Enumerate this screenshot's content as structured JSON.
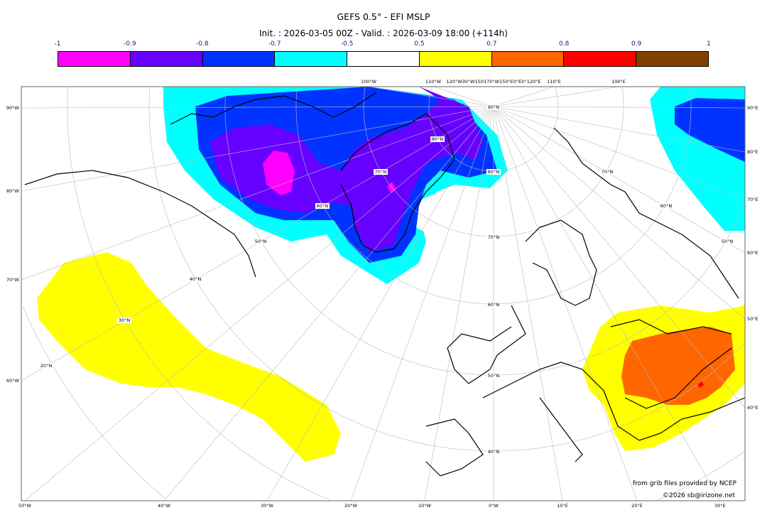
{
  "title": "GEFS 0.5° - EFI MSLP",
  "subtitle": "Init. : 2026-03-05 00Z - Valid. : 2026-03-09 18:00 (+114h)",
  "colorbar": {
    "ticks": [
      "-1",
      "-0.9",
      "-0.8",
      "-0.7",
      "-0.5",
      "0.5",
      "0.7",
      "0.8",
      "0.9",
      "1"
    ],
    "colors": [
      "#ff00ff",
      "#6600ff",
      "#0033ff",
      "#00ffff",
      "#ffffff",
      "#ffff00",
      "#ff6600",
      "#ff0000",
      "#804000"
    ]
  },
  "axis_labels": {
    "left": [
      "90°W",
      "80°W",
      "70°W",
      "60°W"
    ],
    "bottom": [
      "50°W",
      "40°W",
      "30°W",
      "20°W",
      "10°W",
      "0°W",
      "10°E",
      "20°E",
      "30°E"
    ],
    "right": [
      "90°E",
      "80°E",
      "70°E",
      "60°E",
      "50°E",
      "40°E"
    ],
    "top": [
      "100°W",
      "110°W",
      "120°W30°W150170°W150°E0°E0°120°E",
      "110°E",
      "100°E"
    ]
  },
  "lat_labels": [
    "90°N",
    "80°N",
    "80°N",
    "70°N",
    "70°N",
    "70°N",
    "60°N",
    "60°N",
    "60°N",
    "50°N",
    "50°N",
    "50°N",
    "40°N",
    "40°N",
    "30°N",
    "20°N"
  ],
  "credits": {
    "line1": "from grib files provided by NCEP",
    "line2": "©2026 sb@irizone.net"
  }
}
